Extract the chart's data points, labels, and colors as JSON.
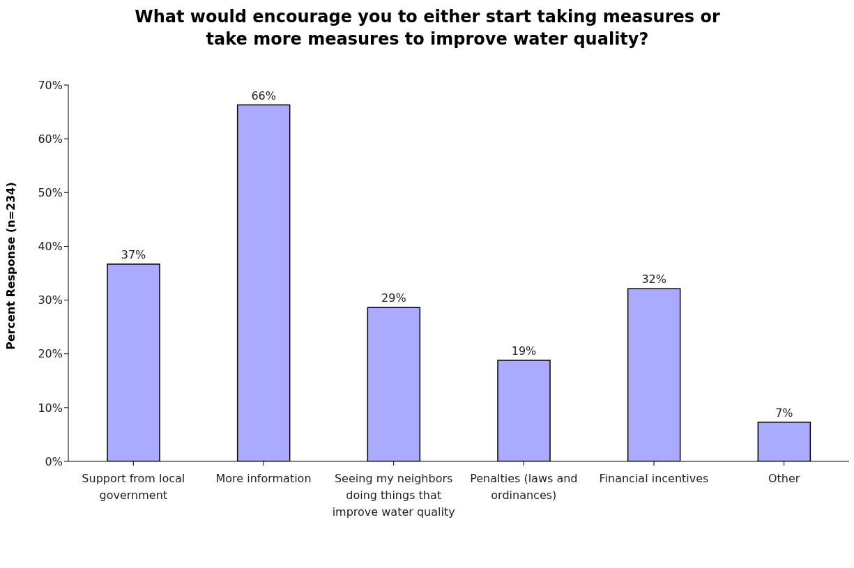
{
  "chart_data": {
    "type": "bar",
    "title": "What would encourage you to either start taking measures or take more measures to improve water quality?",
    "ylabel": "Percent Response (n=234)",
    "categories": [
      "Support from local government",
      "More information",
      "Seeing my neighbors doing things that improve water quality",
      "Penalties (laws and ordinances)",
      "Financial incentives",
      "Other"
    ],
    "values": [
      36.7,
      66.3,
      28.6,
      18.8,
      32.1,
      7.3
    ],
    "value_labels": [
      "37%",
      "66%",
      "29%",
      "19%",
      "32%",
      "7%"
    ],
    "color": "#aaaaff",
    "ylim": [
      0,
      70
    ],
    "yticks": [
      {
        "value": 0,
        "label": "0%"
      },
      {
        "value": 10,
        "label": "10%"
      },
      {
        "value": 20,
        "label": "20%"
      },
      {
        "value": 30,
        "label": "30%"
      },
      {
        "value": 40,
        "label": "40%"
      },
      {
        "value": 50,
        "label": "50%"
      },
      {
        "value": 60,
        "label": "60%"
      },
      {
        "value": 70,
        "label": "70%"
      }
    ],
    "grid": false,
    "legend": false
  }
}
